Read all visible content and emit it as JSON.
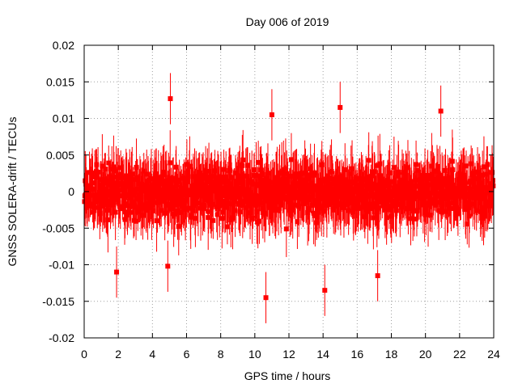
{
  "chart_data": {
    "type": "scatter",
    "title": "Day 006 of 2019",
    "xlabel": "GPS time / hours",
    "ylabel": "GNSS SOLERA-drift / TECUs",
    "xlim": [
      0,
      24
    ],
    "ylim": [
      -0.02,
      0.02
    ],
    "x_ticks": [
      "0",
      "2",
      "4",
      "6",
      "8",
      "10",
      "12",
      "14",
      "16",
      "18",
      "20",
      "22",
      "24"
    ],
    "y_ticks": [
      "0.02",
      "0.015",
      "0.01",
      "0.005",
      "0",
      "-0.005",
      "-0.01",
      "-0.015",
      "-0.02"
    ],
    "grid": true,
    "series_color": "#ff0000",
    "series": [
      {
        "name": "SOLERA drift",
        "marker": "square",
        "error_bars": true,
        "x_range": [
          0,
          24
        ],
        "sampling_interval_hours": 0.00833,
        "typical_error_tecu": 0.0035,
        "spread_tecu": [
          -0.0145,
          0.0127
        ],
        "highlights": [
          {
            "x": 5.05,
            "y": 0.0127
          },
          {
            "x": 10.65,
            "y": -0.0145
          },
          {
            "x": 14.1,
            "y": -0.0135
          },
          {
            "x": 15.0,
            "y": 0.0115
          },
          {
            "x": 17.2,
            "y": -0.0115
          },
          {
            "x": 20.9,
            "y": 0.011
          },
          {
            "x": 4.9,
            "y": -0.0102
          },
          {
            "x": 1.9,
            "y": -0.011
          },
          {
            "x": 11.0,
            "y": 0.0105
          }
        ]
      }
    ]
  }
}
